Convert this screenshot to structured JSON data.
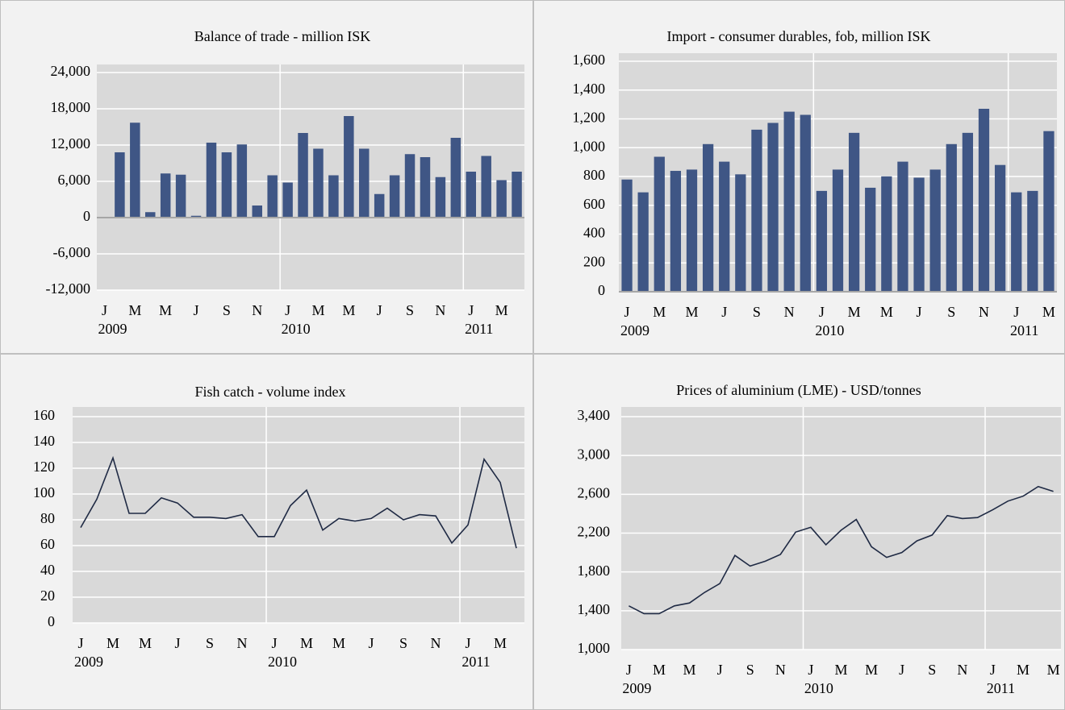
{
  "chart_data": [
    {
      "type": "bar",
      "title": "Balance of trade - million ISK",
      "categories": [
        "J",
        null,
        "M",
        null,
        "M",
        null,
        "J",
        null,
        "S",
        null,
        "N",
        null,
        "J",
        null,
        "M",
        null,
        "M",
        null,
        "J",
        null,
        "S",
        null,
        "N",
        null,
        "J",
        null,
        "M",
        null
      ],
      "category_groups": [
        "2009",
        "2010",
        "2011"
      ],
      "values": [
        null,
        10800,
        15700,
        900,
        7300,
        7100,
        300,
        12400,
        10800,
        12100,
        2000,
        7000,
        5800,
        14000,
        11400,
        7000,
        16800,
        11400,
        3900,
        7000,
        10500,
        10000,
        6700,
        13200,
        7600,
        10200,
        6200,
        7600
      ],
      "color": "#3f5685",
      "ylim": [
        -12000,
        24000
      ],
      "yticks": [
        {
          "value": -12000,
          "label": "-12,000"
        },
        {
          "value": -6000,
          "label": "-6,000"
        },
        0,
        {
          "value": 6000,
          "label": "6,000"
        },
        {
          "value": 12000,
          "label": "12,000"
        },
        {
          "value": 18000,
          "label": "18,000"
        },
        {
          "value": 24000,
          "label": "24,000"
        }
      ],
      "grid": true
    },
    {
      "type": "bar",
      "title": "Import - consumer durables, fob, million ISK",
      "categories": [
        "J",
        null,
        "M",
        null,
        "M",
        null,
        "J",
        null,
        "S",
        null,
        "N",
        null,
        "J",
        null,
        "M",
        null,
        "M",
        null,
        "J",
        null,
        "S",
        null,
        "N",
        null,
        "J",
        null,
        "M"
      ],
      "category_groups": [
        "2009",
        "2010",
        "2011"
      ],
      "values": [
        779,
        690,
        937,
        839,
        848,
        1025,
        903,
        815,
        1125,
        1172,
        1250,
        1228,
        700,
        848,
        1103,
        722,
        801,
        903,
        792,
        848,
        1025,
        1103,
        1270,
        880,
        690,
        700,
        1115
      ],
      "color": "#3f5685",
      "ylim": [
        0,
        1600
      ],
      "yticks": [
        0,
        200,
        400,
        600,
        800,
        {
          "value": 1000,
          "label": "1,000"
        },
        {
          "value": 1200,
          "label": "1,200"
        },
        {
          "value": 1400,
          "label": "1,400"
        },
        {
          "value": 1600,
          "label": "1,600"
        }
      ],
      "grid": true
    },
    {
      "type": "line",
      "title": "Fish catch - volume index",
      "categories": [
        "J",
        null,
        "M",
        null,
        "M",
        null,
        "J",
        null,
        "S",
        null,
        "N",
        null,
        "J",
        null,
        "M",
        null,
        "M",
        null,
        "J",
        null,
        "S",
        null,
        "N",
        null,
        "J",
        null,
        "M",
        null
      ],
      "category_groups": [
        "2009",
        "2010",
        "2011"
      ],
      "values": [
        74,
        96,
        128,
        85,
        85,
        97,
        93,
        82,
        82,
        81,
        84,
        67,
        67,
        91,
        103,
        72,
        81,
        79,
        81,
        89,
        80,
        84,
        83,
        62,
        76,
        127,
        109,
        58
      ],
      "color": "#1f2a44",
      "ylim": [
        0,
        160
      ],
      "yticks": [
        0,
        20,
        40,
        60,
        80,
        100,
        120,
        140,
        160
      ],
      "grid": true
    },
    {
      "type": "line",
      "title": "Prices of aluminium (LME) - USD/tonnes",
      "categories": [
        "J",
        null,
        "M",
        null,
        "M",
        null,
        "J",
        null,
        "S",
        null,
        "N",
        null,
        "J",
        null,
        "M",
        null,
        "M",
        null,
        "J",
        null,
        "S",
        null,
        "N",
        null,
        "J",
        null,
        "M",
        null,
        "M"
      ],
      "category_groups": [
        "2009",
        "2010",
        "2011"
      ],
      "values": [
        1450,
        1370,
        1370,
        1450,
        1480,
        1590,
        1680,
        1970,
        1860,
        1910,
        1980,
        2210,
        2260,
        2080,
        2230,
        2340,
        2060,
        1950,
        2000,
        2120,
        2180,
        2380,
        2350,
        2360,
        2440,
        2530,
        2580,
        2680,
        2630
      ],
      "color": "#1f2a44",
      "ylim": [
        1000,
        3400
      ],
      "yticks": [
        {
          "value": 1000,
          "label": "1,000"
        },
        {
          "value": 1400,
          "label": "1,400"
        },
        {
          "value": 1800,
          "label": "1,800"
        },
        {
          "value": 2200,
          "label": "2,200"
        },
        {
          "value": 2600,
          "label": "2,600"
        },
        {
          "value": 3000,
          "label": "3,000"
        },
        {
          "value": 3400,
          "label": "3,400"
        }
      ],
      "grid": true
    }
  ]
}
